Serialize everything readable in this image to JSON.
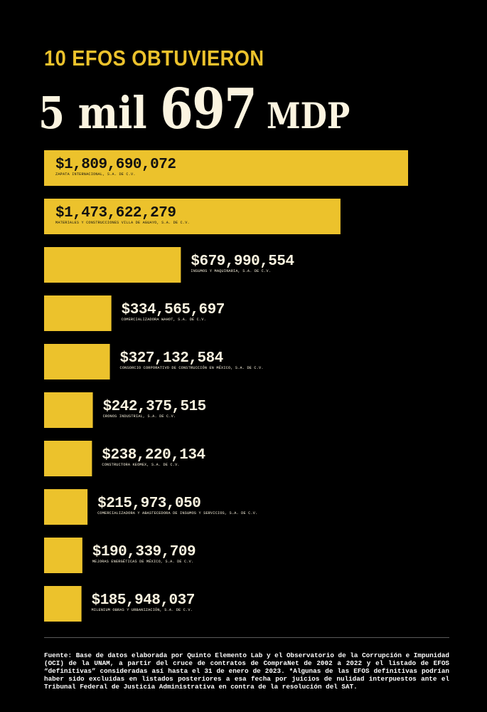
{
  "header": {
    "kicker": "10 EFOS OBTUVIERON",
    "headline_a": "5 mil ",
    "headline_b": "697",
    "headline_c": " MDP"
  },
  "colors": {
    "background": "#000000",
    "bar": "#ecc22c",
    "label_on_bar": "#111111",
    "label_off_bar": "#fbf4e0"
  },
  "chart_data": {
    "type": "bar",
    "orientation": "horizontal",
    "categories": [
      "ZAPATA INTERNACIONAL, S.A. DE C.V.",
      "MATERIALES Y CONSTRUCCIONES VILLA DE AGUAYO, S.A. DE C.V.",
      "INSUMOS Y MAQUINARIA, S.A. DE C.V.",
      "COMERCIALIZADORA WAHOT, S.A. DE C.V.",
      "CONSORCIO CORPORATIVO DE CONSTRUCCIÓN EN MÉXICO, S.A. DE C.V.",
      "CRONOS INDUSTRIAL, S.A. DE C.V.",
      "CONSTRUCTORA KEOMEX, S.A. DE C.V.",
      "COMERCIALIZADORA Y ABASTECEDORA DE INSUMOS Y SERVICIOS, S.A. DE C.V.",
      "MEJORAS ENERGÉTICAS DE MÉXICO, S.A. DE C.V.",
      "MILENIUM OBRAS Y URBANIZACIÓN, S.A. DE C.V."
    ],
    "values": [
      1809690072,
      1473622279,
      679990554,
      334565697,
      327132584,
      242375515,
      238220134,
      215973050,
      190339709,
      185948037
    ],
    "value_labels": [
      "$1,809,690,072",
      "$1,473,622,279",
      "$679,990,554",
      "$334,565,697",
      "$327,132,584",
      "$242,375,515",
      "$238,220,134",
      "$215,973,050",
      "$190,339,709",
      "$185,948,037"
    ],
    "label_inside_bar": [
      true,
      true,
      false,
      false,
      false,
      false,
      false,
      false,
      false,
      false
    ],
    "xlim": [
      0,
      1809690072
    ],
    "grid": false,
    "legend": "none"
  },
  "source": "Fuente: Base de datos elaborada por Quinto Elemento Lab y el Observatorio de la Corrupción e Impunidad (OCI) de la UNAM, a partir del cruce de contratos de CompraNet de 2002 a 2022 y el listado de EFOS “definitivas” consideradas así hasta el 31 de enero de 2023. *Algunas de las EFOS definitivas podrían haber sido excluidas en listados posteriores a esa fecha por juicios de nulidad interpuestos ante el Tribunal Federal de Justicia Administrativa en contra de la resolución del SAT."
}
